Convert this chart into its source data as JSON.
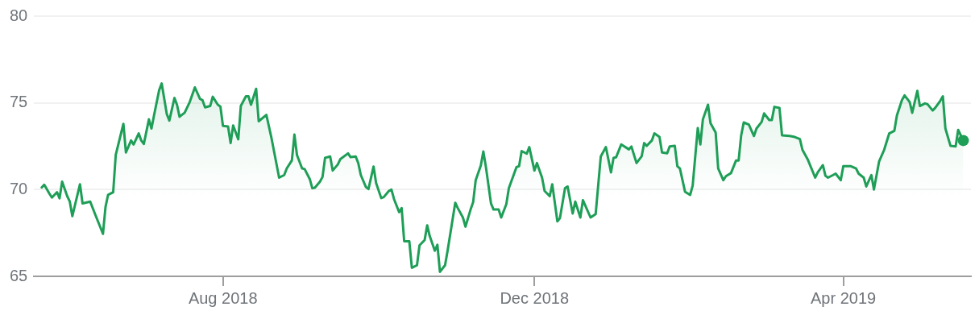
{
  "chart_data": {
    "type": "area",
    "xlim": [
      "2018-05-19",
      "2019-05-21"
    ],
    "ylim": [
      65,
      80
    ],
    "yticks": [
      65,
      70,
      75,
      80
    ],
    "xticks": [
      {
        "value": "2018-08-01",
        "label": "Aug 2018"
      },
      {
        "value": "2018-12-01",
        "label": "Dec 2018"
      },
      {
        "value": "2019-04-01",
        "label": "Apr 2019"
      }
    ],
    "grid": "y",
    "legend": false,
    "marker": "none",
    "series": [
      {
        "color": "#1e9e57",
        "x": [
          "2018-05-22",
          "2018-05-23",
          "2018-05-25",
          "2018-05-26",
          "2018-05-28",
          "2018-05-29",
          "2018-05-30",
          "2018-06-01",
          "2018-06-02",
          "2018-06-03",
          "2018-06-06",
          "2018-06-07",
          "2018-06-10",
          "2018-06-12",
          "2018-06-15",
          "2018-06-16",
          "2018-06-17",
          "2018-06-19",
          "2018-06-20",
          "2018-06-23",
          "2018-06-24",
          "2018-06-26",
          "2018-06-27",
          "2018-06-29",
          "2018-06-30",
          "2018-07-01",
          "2018-07-03",
          "2018-07-04",
          "2018-07-05",
          "2018-07-07",
          "2018-07-08",
          "2018-07-10",
          "2018-07-11",
          "2018-07-13",
          "2018-07-14",
          "2018-07-15",
          "2018-07-17",
          "2018-07-19",
          "2018-07-21",
          "2018-07-23",
          "2018-07-24",
          "2018-07-25",
          "2018-07-27",
          "2018-07-28",
          "2018-07-30",
          "2018-07-31",
          "2018-08-01",
          "2018-08-03",
          "2018-08-04",
          "2018-08-05",
          "2018-08-07",
          "2018-08-08",
          "2018-08-10",
          "2018-08-11",
          "2018-08-12",
          "2018-08-14",
          "2018-08-15",
          "2018-08-18",
          "2018-08-20",
          "2018-08-23",
          "2018-08-25",
          "2018-08-26",
          "2018-08-28",
          "2018-08-29",
          "2018-08-30",
          "2018-09-01",
          "2018-09-02",
          "2018-09-04",
          "2018-09-05",
          "2018-09-06",
          "2018-09-08",
          "2018-09-09",
          "2018-09-10",
          "2018-09-12",
          "2018-09-13",
          "2018-09-15",
          "2018-09-16",
          "2018-09-19",
          "2018-09-20",
          "2018-09-22",
          "2018-09-23",
          "2018-09-24",
          "2018-09-26",
          "2018-09-27",
          "2018-09-29",
          "2018-09-30",
          "2018-10-02",
          "2018-10-03",
          "2018-10-05",
          "2018-10-06",
          "2018-10-07",
          "2018-10-09",
          "2018-10-10",
          "2018-10-11",
          "2018-10-13",
          "2018-10-14",
          "2018-10-16",
          "2018-10-17",
          "2018-10-19",
          "2018-10-20",
          "2018-10-21",
          "2018-10-23",
          "2018-10-24",
          "2018-10-25",
          "2018-10-27",
          "2018-10-28",
          "2018-10-31",
          "2018-11-01",
          "2018-11-03",
          "2018-11-04",
          "2018-11-06",
          "2018-11-07",
          "2018-11-08",
          "2018-11-10",
          "2018-11-11",
          "2018-11-12",
          "2018-11-14",
          "2018-11-15",
          "2018-11-17",
          "2018-11-18",
          "2018-11-20",
          "2018-11-21",
          "2018-11-24",
          "2018-11-25",
          "2018-11-26",
          "2018-11-28",
          "2018-11-29",
          "2018-12-01",
          "2018-12-02",
          "2018-12-04",
          "2018-12-05",
          "2018-12-07",
          "2018-12-08",
          "2018-12-10",
          "2018-12-11",
          "2018-12-13",
          "2018-12-14",
          "2018-12-16",
          "2018-12-17",
          "2018-12-19",
          "2018-12-20",
          "2018-12-23",
          "2018-12-25",
          "2018-12-27",
          "2018-12-29",
          "2018-12-31",
          "2019-01-01",
          "2019-01-02",
          "2019-01-04",
          "2019-01-07",
          "2019-01-08",
          "2019-01-10",
          "2019-01-12",
          "2019-01-13",
          "2019-01-14",
          "2019-01-16",
          "2019-01-17",
          "2019-01-19",
          "2019-01-20",
          "2019-01-22",
          "2019-01-23",
          "2019-01-25",
          "2019-01-26",
          "2019-01-27",
          "2019-01-29",
          "2019-01-31",
          "2019-02-01",
          "2019-02-03",
          "2019-02-04",
          "2019-02-05",
          "2019-02-07",
          "2019-02-08",
          "2019-02-10",
          "2019-02-11",
          "2019-02-13",
          "2019-02-14",
          "2019-02-16",
          "2019-02-18",
          "2019-02-19",
          "2019-02-20",
          "2019-02-21",
          "2019-02-23",
          "2019-02-25",
          "2019-02-26",
          "2019-02-28",
          "2019-03-01",
          "2019-03-03",
          "2019-03-04",
          "2019-03-05",
          "2019-03-07",
          "2019-03-08",
          "2019-03-11",
          "2019-03-13",
          "2019-03-15",
          "2019-03-16",
          "2019-03-18",
          "2019-03-21",
          "2019-03-22",
          "2019-03-24",
          "2019-03-25",
          "2019-03-26",
          "2019-03-28",
          "2019-03-29",
          "2019-03-31",
          "2019-04-01",
          "2019-04-04",
          "2019-04-06",
          "2019-04-07",
          "2019-04-09",
          "2019-04-10",
          "2019-04-12",
          "2019-04-13",
          "2019-04-15",
          "2019-04-17",
          "2019-04-19",
          "2019-04-21",
          "2019-04-22",
          "2019-04-24",
          "2019-04-25",
          "2019-04-27",
          "2019-04-28",
          "2019-04-30",
          "2019-05-01",
          "2019-05-03",
          "2019-05-04",
          "2019-05-06",
          "2019-05-07",
          "2019-05-09",
          "2019-05-10",
          "2019-05-11",
          "2019-05-13",
          "2019-05-15",
          "2019-05-16",
          "2019-05-18"
        ],
        "values": [
          70.12,
          70.28,
          69.77,
          69.54,
          69.85,
          69.5,
          70.46,
          69.62,
          69.31,
          68.47,
          70.31,
          69.2,
          69.31,
          68.55,
          67.45,
          69.0,
          69.7,
          69.85,
          71.99,
          73.79,
          72.14,
          72.83,
          72.6,
          73.24,
          72.83,
          72.63,
          74.05,
          73.52,
          74.28,
          75.73,
          76.12,
          74.36,
          73.98,
          75.28,
          74.89,
          74.2,
          74.43,
          75.05,
          75.89,
          75.23,
          75.15,
          74.74,
          74.82,
          75.35,
          74.89,
          74.79,
          73.67,
          73.64,
          72.68,
          73.7,
          72.9,
          74.82,
          75.38,
          75.38,
          74.89,
          75.81,
          73.94,
          74.31,
          72.98,
          70.69,
          70.84,
          71.22,
          71.68,
          73.17,
          71.99,
          71.22,
          71.18,
          70.61,
          70.08,
          70.11,
          70.46,
          70.73,
          71.83,
          71.91,
          71.1,
          71.45,
          71.76,
          72.09,
          71.87,
          71.91,
          71.53,
          70.84,
          70.15,
          70.03,
          71.33,
          70.38,
          69.51,
          69.57,
          69.92,
          70.0,
          69.46,
          68.7,
          68.93,
          67.02,
          67.02,
          65.49,
          65.64,
          66.79,
          67.09,
          67.94,
          67.32,
          66.48,
          66.82,
          65.26,
          65.64,
          66.48,
          69.24,
          68.93,
          68.39,
          67.86,
          68.85,
          69.27,
          70.54,
          71.39,
          72.2,
          71.31,
          69.2,
          68.85,
          68.85,
          68.39,
          69.16,
          70.08,
          71.3,
          71.35,
          72.22,
          72.07,
          72.45,
          71.1,
          71.53,
          70.69,
          69.92,
          69.62,
          70.31,
          68.17,
          68.35,
          70.08,
          70.18,
          68.62,
          69.31,
          68.39,
          69.39,
          68.39,
          68.59,
          71.91,
          72.45,
          70.99,
          71.83,
          71.86,
          72.6,
          72.32,
          72.48,
          71.53,
          71.91,
          72.68,
          72.52,
          72.83,
          73.24,
          73.03,
          72.14,
          72.09,
          72.49,
          72.52,
          71.35,
          71.22,
          69.88,
          69.69,
          70.23,
          73.55,
          72.6,
          74.05,
          74.89,
          73.82,
          73.29,
          71.22,
          70.54,
          70.77,
          70.95,
          71.68,
          71.68,
          73.13,
          73.87,
          73.75,
          73.09,
          73.52,
          73.9,
          74.39,
          74.01,
          74.01,
          74.77,
          74.71,
          73.13,
          73.09,
          73.03,
          72.91,
          72.29,
          71.76,
          70.69,
          71.0,
          71.41,
          70.8,
          70.69,
          70.84,
          70.92,
          70.54,
          71.35,
          71.35,
          71.22,
          70.92,
          70.69,
          70.18,
          70.84,
          70.0,
          71.61,
          72.29,
          73.24,
          73.39,
          74.28,
          75.17,
          75.43,
          75.05,
          74.43,
          75.69,
          74.82,
          74.97,
          74.92,
          74.56,
          74.71,
          75.12,
          75.38,
          73.52,
          72.52,
          72.49,
          73.44,
          72.83
        ]
      }
    ]
  }
}
